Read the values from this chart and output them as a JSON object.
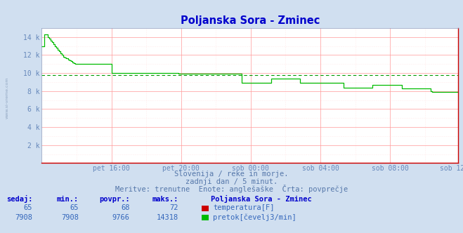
{
  "title": "Poljanska Sora - Zminec",
  "title_color": "#0000cc",
  "bg_color": "#d0dff0",
  "plot_bg_color": "#ffffff",
  "grid_color_major": "#ff9999",
  "grid_color_minor": "#ffdddd",
  "avg_line_color": "#009900",
  "avg_line_value": 9766,
  "flow_color": "#00bb00",
  "temp_color": "#cc0000",
  "axis_color": "#6688bb",
  "ymin": 0,
  "ymax": 15000,
  "yticks": [
    2000,
    4000,
    6000,
    8000,
    10000,
    12000,
    14000
  ],
  "ytick_labels": [
    "2 k",
    "4 k",
    "6 k",
    "8 k",
    "10 k",
    "12 k",
    "14 k"
  ],
  "xtick_labels": [
    "pet 16:00",
    "pet 20:00",
    "sob 00:00",
    "sob 04:00",
    "sob 08:00",
    "sob 12:00"
  ],
  "subtitle1": "Slovenija / reke in morje.",
  "subtitle2": "zadnji dan / 5 minut.",
  "subtitle3": "Meritve: trenutne  Enote: anglešaške  Črta: povprečje",
  "table_headers": [
    "sedaj:",
    "min.:",
    "povpr.:",
    "maks.:"
  ],
  "row1_vals": [
    "65",
    "65",
    "68",
    "72"
  ],
  "row2_vals": [
    "7908",
    "7908",
    "9766",
    "14318"
  ],
  "station_name": "Poljanska Sora - Zminec",
  "label_temp": "temperatura[F]",
  "label_flow": "pretok[čevelj3/min]",
  "n_points": 288,
  "flow_data": [
    13000,
    13000,
    14318,
    14318,
    14000,
    13800,
    13600,
    13400,
    13200,
    13000,
    12800,
    12600,
    12400,
    12200,
    12000,
    11800,
    11700,
    11600,
    11500,
    11400,
    11300,
    11200,
    11100,
    11000,
    11000,
    11000,
    11000,
    11000,
    11000,
    11000,
    11000,
    11000,
    11000,
    11000,
    11000,
    11000,
    11000,
    11000,
    11000,
    11000,
    11000,
    11000,
    11000,
    11000,
    11000,
    11000,
    11000,
    11000,
    10000,
    10000,
    10000,
    10000,
    10000,
    10000,
    10000,
    10000,
    10000,
    10000,
    10000,
    10000,
    10000,
    10000,
    10000,
    10000,
    10000,
    10000,
    10000,
    10000,
    10000,
    10000,
    10000,
    10000,
    10000,
    10000,
    10000,
    10000,
    10000,
    10000,
    10000,
    10000,
    10000,
    10000,
    10000,
    10000,
    10000,
    10000,
    10000,
    10000,
    10000,
    10000,
    10000,
    10000,
    10000,
    10000,
    9900,
    9900,
    9900,
    9900,
    9900,
    9900,
    9900,
    9900,
    9900,
    9900,
    9900,
    9900,
    9900,
    9900,
    9900,
    9900,
    9900,
    9900,
    9900,
    9900,
    9900,
    9900,
    9900,
    9900,
    9900,
    9900,
    9900,
    9900,
    9900,
    9900,
    9900,
    9900,
    9900,
    9900,
    9900,
    9900,
    9900,
    9900,
    9900,
    9900,
    9900,
    9900,
    9900,
    9900,
    8900,
    8900,
    8900,
    8900,
    8900,
    8900,
    8900,
    8900,
    8900,
    8900,
    8900,
    8900,
    8900,
    8900,
    8900,
    8900,
    8900,
    8900,
    8900,
    8900,
    9400,
    9400,
    9400,
    9400,
    9400,
    9400,
    9400,
    9400,
    9400,
    9400,
    9400,
    9400,
    9400,
    9400,
    9400,
    9400,
    9400,
    9400,
    9400,
    9400,
    8900,
    8900,
    8900,
    8900,
    8900,
    8900,
    8900,
    8900,
    8900,
    8900,
    8900,
    8900,
    8900,
    8900,
    8900,
    8900,
    8900,
    8900,
    8900,
    8900,
    8900,
    8900,
    8900,
    8900,
    8900,
    8900,
    8900,
    8900,
    8900,
    8900,
    8400,
    8400,
    8400,
    8400,
    8400,
    8400,
    8400,
    8400,
    8400,
    8400,
    8400,
    8400,
    8400,
    8400,
    8400,
    8400,
    8400,
    8400,
    8400,
    8400,
    8700,
    8700,
    8700,
    8700,
    8700,
    8700,
    8700,
    8700,
    8700,
    8700,
    8700,
    8700,
    8700,
    8700,
    8700,
    8700,
    8700,
    8700,
    8700,
    8700,
    8300,
    8300,
    8300,
    8300,
    8300,
    8300,
    8300,
    8300,
    8300,
    8300,
    8300,
    8300,
    8300,
    8300,
    8300,
    8300,
    8300,
    8300,
    8300,
    8300,
    8000,
    7908,
    7908,
    7908,
    7908,
    7908,
    7908,
    7908
  ]
}
